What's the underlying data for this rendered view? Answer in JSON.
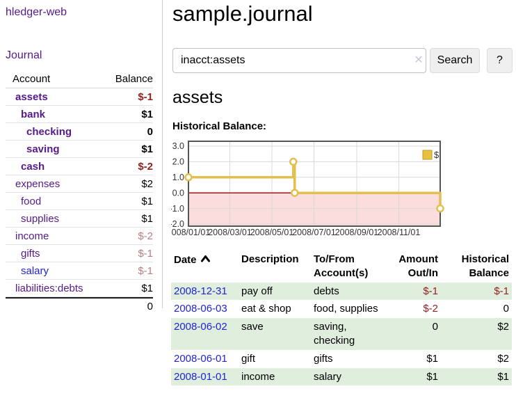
{
  "sidebar": {
    "brand": "hledger-web",
    "nav": {
      "journal": "Journal"
    },
    "accounts_table": {
      "col_account": "Account",
      "col_balance": "Balance",
      "rows": [
        {
          "name": "assets",
          "indent": 0,
          "bold": true,
          "balance": "$-1",
          "negative": "strong"
        },
        {
          "name": "bank",
          "indent": 1,
          "bold": true,
          "balance": "$1",
          "negative": "none"
        },
        {
          "name": "checking",
          "indent": 2,
          "bold": true,
          "balance": "0",
          "negative": "none"
        },
        {
          "name": "saving",
          "indent": 2,
          "bold": true,
          "balance": "$1",
          "negative": "none"
        },
        {
          "name": "cash",
          "indent": 1,
          "bold": true,
          "balance": "$-2",
          "negative": "strong"
        },
        {
          "name": "expenses",
          "indent": 0,
          "bold": false,
          "balance": "$2",
          "negative": "none"
        },
        {
          "name": "food",
          "indent": 1,
          "bold": false,
          "balance": "$1",
          "negative": "none"
        },
        {
          "name": "supplies",
          "indent": 1,
          "bold": false,
          "balance": "$1",
          "negative": "none"
        },
        {
          "name": "income",
          "indent": 0,
          "bold": false,
          "balance": "$-2",
          "negative": "muted"
        },
        {
          "name": "gifts",
          "indent": 1,
          "bold": false,
          "balance": "$-1",
          "negative": "muted"
        },
        {
          "name": "salary",
          "indent": 1,
          "bold": false,
          "balance": "$-1",
          "negative": "muted",
          "link_color": "blue"
        },
        {
          "name": "liabilities:debts",
          "indent": 0,
          "bold": false,
          "balance": "$1",
          "negative": "none"
        }
      ],
      "total": "0"
    }
  },
  "main": {
    "title": "sample.journal",
    "search": {
      "value": "inacct:assets",
      "clear_icon": "✕",
      "search_button": "Search",
      "help_button": "?"
    },
    "account_heading": "assets",
    "chart_label": "Historical Balance:"
  },
  "chart_data": {
    "type": "line",
    "step": true,
    "title": "Historical Balance",
    "x_range": [
      "2008-01-01",
      "2008-12-31"
    ],
    "x_ticks": [
      "2008/01/01",
      "2008/03/01",
      "2008/05/01",
      "2008/07/01",
      "2008/09/01",
      "2008/11/01"
    ],
    "y_ticks": [
      3,
      2,
      1,
      0,
      -1,
      -2
    ],
    "ylim": [
      -2,
      3
    ],
    "grid": true,
    "legend_position": "top-right",
    "zero_line_color": "#990000",
    "negative_region_color": "#fbdddd",
    "series": [
      {
        "name": "$",
        "color": "#e3bf4f",
        "legend_fill": "#e8c23f",
        "legend_border": "#bb9c2c",
        "points": [
          [
            "2008-01-01",
            1
          ],
          [
            "2008-06-01",
            2
          ],
          [
            "2008-06-03",
            0
          ],
          [
            "2008-12-31",
            -1
          ]
        ]
      }
    ]
  },
  "register": {
    "columns": {
      "date": "Date",
      "description": "Description",
      "accounts": "To/From Account(s)",
      "amount": "Amount Out/In",
      "balance": "Historical Balance"
    },
    "rows": [
      {
        "date": "2008-12-31",
        "description": "pay off",
        "accounts": "debts",
        "amount": "$-1",
        "amount_negative": true,
        "balance": "$-1",
        "balance_negative": true
      },
      {
        "date": "2008-06-03",
        "description": "eat & shop",
        "accounts": "food, supplies",
        "amount": "$-2",
        "amount_negative": true,
        "balance": "0",
        "balance_negative": false
      },
      {
        "date": "2008-06-02",
        "description": "save",
        "accounts": "saving, checking",
        "amount": "0",
        "amount_negative": false,
        "balance": "$2",
        "balance_negative": false
      },
      {
        "date": "2008-06-01",
        "description": "gift",
        "accounts": "gifts",
        "amount": "$1",
        "amount_negative": false,
        "balance": "$2",
        "balance_negative": false
      },
      {
        "date": "2008-01-01",
        "description": "income",
        "accounts": "salary",
        "amount": "$1",
        "amount_negative": false,
        "balance": "$1",
        "balance_negative": false
      }
    ]
  }
}
